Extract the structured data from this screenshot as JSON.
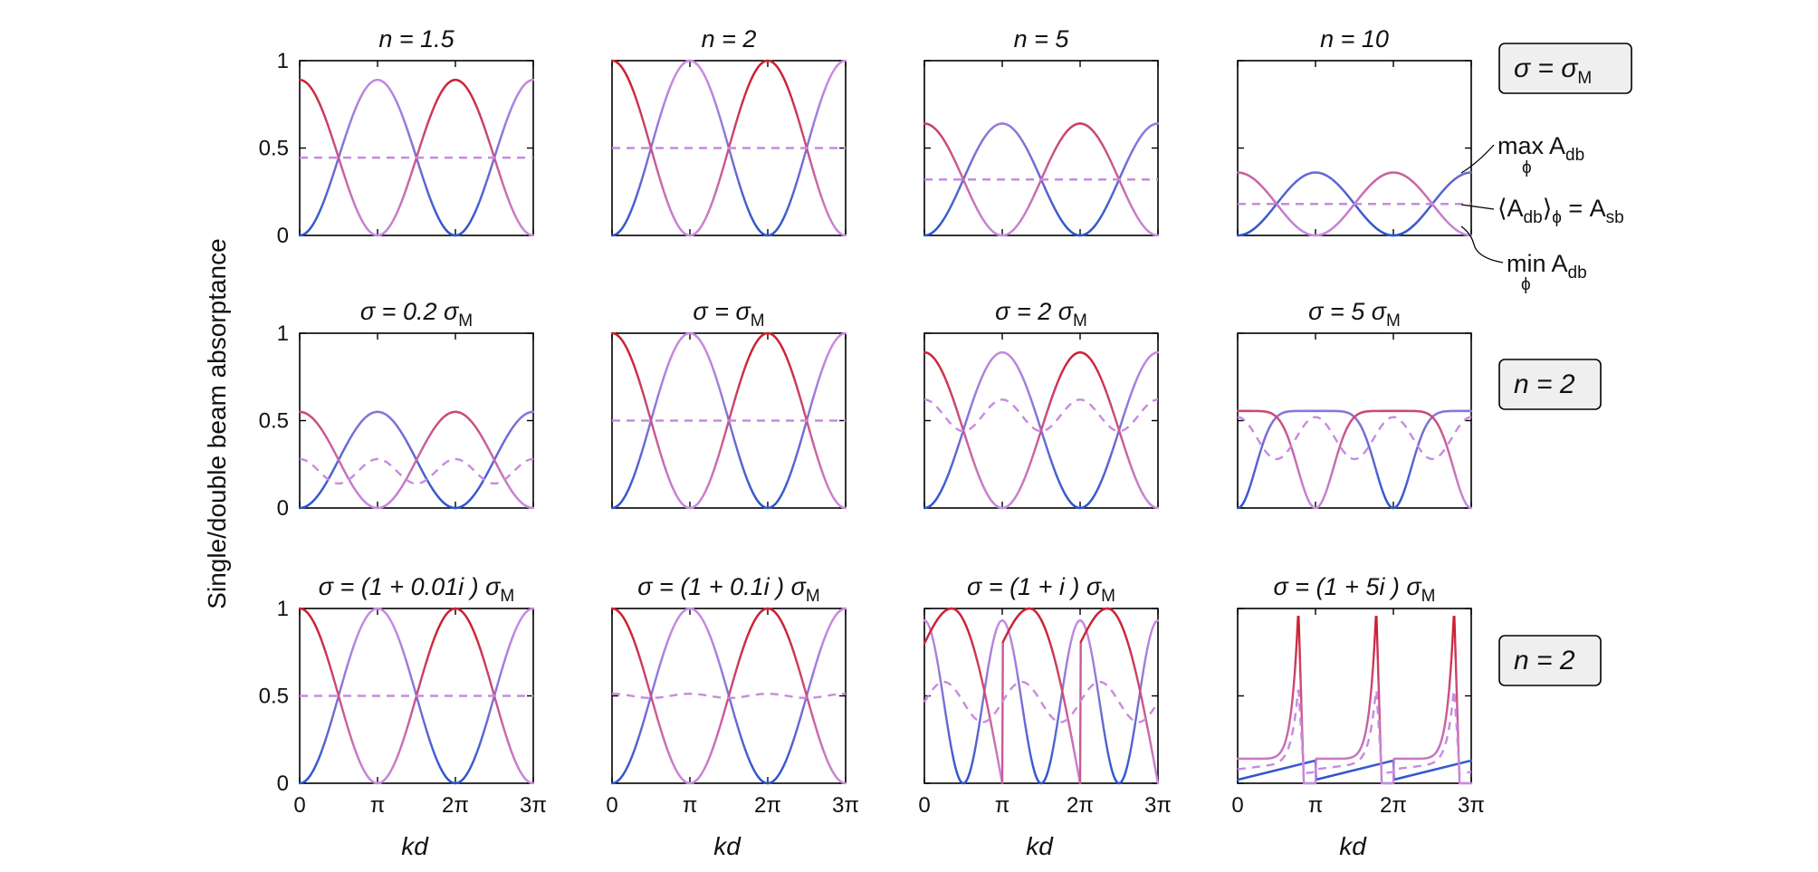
{
  "figure": {
    "ylabel": "Single/double beam absorptance",
    "xlabel": "kd"
  },
  "axes_common": {
    "x_range": [
      0,
      9.42477796
    ],
    "y_range": [
      0,
      1
    ],
    "x_ticks": [
      "0",
      "π",
      "2π",
      "3π"
    ],
    "y_ticks": [
      "0",
      "0.5",
      "1"
    ]
  },
  "colors": {
    "max": "#cc2233",
    "min": "#2a55cc",
    "mean_dashed": "#c78ae0",
    "blend_mid": "#b356b8"
  },
  "row_badges": [
    {
      "prefix": "σ = σ",
      "sub": "M"
    },
    {
      "prefix": "n = 2",
      "sub": ""
    },
    {
      "prefix": "n = 2",
      "sub": ""
    }
  ],
  "annotations": {
    "max": {
      "text": "max A",
      "sub": "db",
      "under": "ϕ"
    },
    "mean": {
      "text": "⟨A",
      "sub": "db",
      "close": "⟩",
      "sub2": "ϕ",
      "tail": " = A",
      "sub3": "sb"
    },
    "min": {
      "text": "min A",
      "sub": "db",
      "under": "ϕ"
    }
  },
  "chart_data": [
    {
      "type": "line",
      "title_pre": "n = 1.5",
      "title_sub": "",
      "title_post": "",
      "model": "cos",
      "params": {
        "amax": 0.89,
        "phase": 0.0,
        "mean": 0.445
      }
    },
    {
      "type": "line",
      "title_pre": "n = 2",
      "title_sub": "",
      "title_post": "",
      "model": "cos",
      "params": {
        "amax": 1.0,
        "phase": 0.0,
        "mean": 0.5
      }
    },
    {
      "type": "line",
      "title_pre": "n = 5",
      "title_sub": "",
      "title_post": "",
      "model": "cos",
      "params": {
        "amax": 0.64,
        "phase": 0.0,
        "mean": 0.32
      }
    },
    {
      "type": "line",
      "title_pre": "n = 10",
      "title_sub": "",
      "title_post": "",
      "model": "cos",
      "params": {
        "amax": 0.36,
        "phase": 0.0,
        "mean": 0.18
      }
    },
    {
      "type": "line",
      "title_pre": "σ = 0.2 σ",
      "title_sub": "M",
      "title_post": "",
      "model": "cosw",
      "params": {
        "amax": 0.55,
        "meanMax": 0.28,
        "meanMin": 0.14
      }
    },
    {
      "type": "line",
      "title_pre": "σ = σ",
      "title_sub": "M",
      "title_post": "",
      "model": "cos",
      "params": {
        "amax": 1.0,
        "phase": 0.0,
        "mean": 0.5
      }
    },
    {
      "type": "line",
      "title_pre": "σ = 2 σ",
      "title_sub": "M",
      "title_post": "",
      "model": "flat",
      "params": {
        "top": 0.89,
        "p": 2.0,
        "meanMax": 0.62,
        "meanMin": 0.44
      }
    },
    {
      "type": "line",
      "title_pre": "σ = 5 σ",
      "title_sub": "M",
      "title_post": "",
      "model": "flat",
      "params": {
        "top": 0.555,
        "p": 8.0,
        "meanMax": 0.52,
        "meanMin": 0.28
      }
    },
    {
      "type": "line",
      "title_pre": "σ = (1 + 0.01i ) σ",
      "title_sub": "M",
      "title_post": "",
      "model": "cos",
      "params": {
        "amax": 1.0,
        "phase": 0.0,
        "mean": 0.5
      }
    },
    {
      "type": "line",
      "title_pre": "σ = (1 + 0.1i ) σ",
      "title_sub": "M",
      "title_post": "",
      "model": "cosr",
      "params": {
        "amax": 1.0,
        "mean": 0.5,
        "ripple": 0.012
      }
    },
    {
      "type": "line",
      "title_pre": "σ = (1 + i ) σ",
      "title_sub": "M",
      "title_post": "",
      "model": "skew",
      "params": {
        "peakFrac": 0.35,
        "start": 0.8,
        "meanMax": 0.58,
        "meanMin": 0.35
      }
    },
    {
      "type": "line",
      "title_pre": "σ = (1 + 5i ) σ",
      "title_sub": "M",
      "title_post": "",
      "model": "spike",
      "params": {
        "peakFrac": 0.78,
        "start": 0.14,
        "meanPeak": 0.55
      }
    }
  ]
}
